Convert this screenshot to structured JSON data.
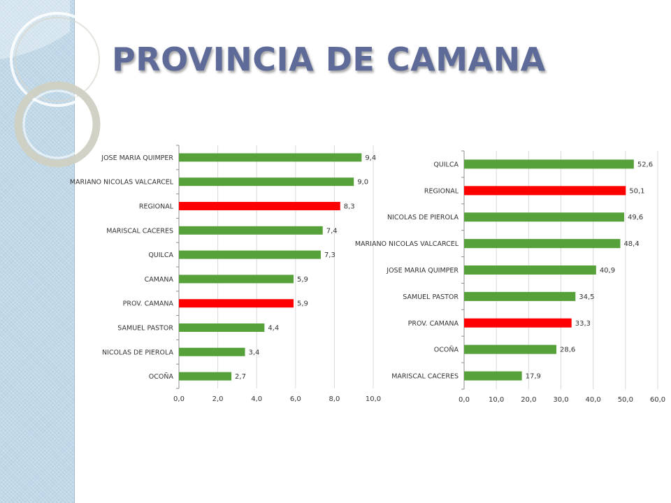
{
  "slide": {
    "title": "PROVINCIA DE CAMANA"
  },
  "colors": {
    "green": "#57a13a",
    "red": "#ff0000",
    "title": "#5e6b98"
  },
  "chart_data": [
    {
      "type": "bar",
      "orientation": "horizontal",
      "categories": [
        "JOSE MARIA QUIMPER",
        "MARIANO NICOLAS VALCARCEL",
        "REGIONAL",
        "MARISCAL CACERES",
        "QUILCA",
        "CAMANA",
        "PROV. CAMANA",
        "SAMUEL PASTOR",
        "NICOLAS DE PIEROLA",
        "OCOÑA"
      ],
      "values": [
        9.4,
        9.0,
        8.3,
        7.4,
        7.3,
        5.9,
        5.9,
        4.4,
        3.4,
        2.7
      ],
      "value_labels": [
        "9,4",
        "9,0",
        "8,3",
        "7,4",
        "7,3",
        "5,9",
        "5,9",
        "4,4",
        "3,4",
        "2,7"
      ],
      "bar_colors": [
        "#57a13a",
        "#57a13a",
        "#ff0000",
        "#57a13a",
        "#57a13a",
        "#57a13a",
        "#ff0000",
        "#57a13a",
        "#57a13a",
        "#57a13a"
      ],
      "xlim": [
        0,
        10
      ],
      "xticks": [
        0,
        2,
        4,
        6,
        8,
        10
      ],
      "xtick_labels": [
        "0,0",
        "2,0",
        "4,0",
        "6,0",
        "8,0",
        "10,0"
      ],
      "grid": true,
      "legend": "none"
    },
    {
      "type": "bar",
      "orientation": "horizontal",
      "categories": [
        "QUILCA",
        "REGIONAL",
        "NICOLAS DE PIEROLA",
        "MARIANO NICOLAS VALCARCEL",
        "JOSE MARIA QUIMPER",
        "SAMUEL PASTOR",
        "PROV. CAMANA",
        "OCOÑA",
        "MARISCAL CACERES"
      ],
      "values": [
        52.6,
        50.1,
        49.6,
        48.4,
        40.9,
        34.5,
        33.3,
        28.6,
        17.9
      ],
      "value_labels": [
        "52,6",
        "50,1",
        "49,6",
        "48,4",
        "40,9",
        "34,5",
        "33,3",
        "28,6",
        "17,9"
      ],
      "bar_colors": [
        "#57a13a",
        "#ff0000",
        "#57a13a",
        "#57a13a",
        "#57a13a",
        "#57a13a",
        "#ff0000",
        "#57a13a",
        "#57a13a"
      ],
      "xlim": [
        0,
        60
      ],
      "xticks": [
        0,
        10,
        20,
        30,
        40,
        50,
        60
      ],
      "xtick_labels": [
        "0,0",
        "10,0",
        "20,0",
        "30,0",
        "40,0",
        "50,0",
        "60,0"
      ],
      "grid": true,
      "legend": "none"
    }
  ]
}
